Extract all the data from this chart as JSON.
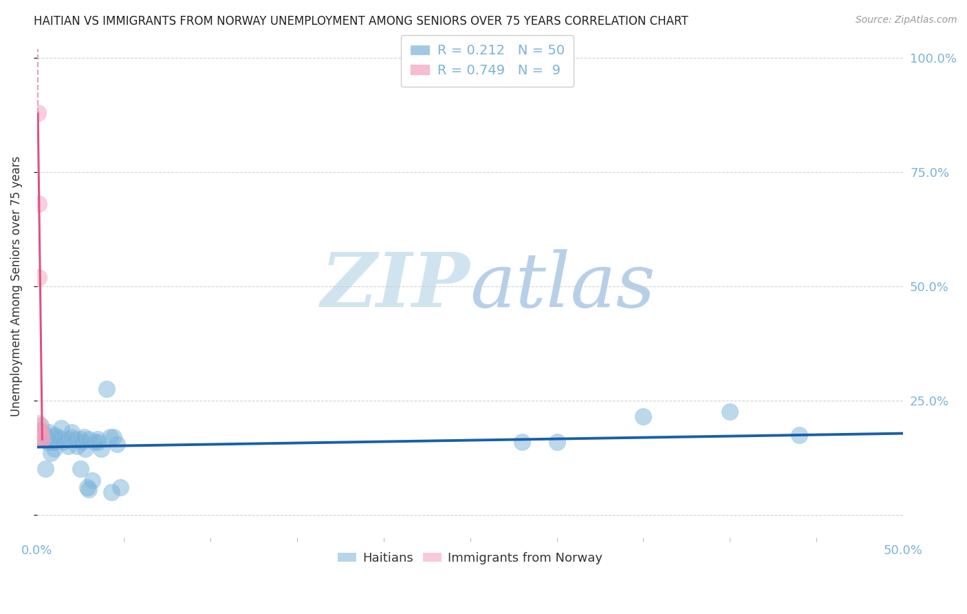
{
  "title": "HAITIAN VS IMMIGRANTS FROM NORWAY UNEMPLOYMENT AMONG SENIORS OVER 75 YEARS CORRELATION CHART",
  "source": "Source: ZipAtlas.com",
  "ylabel": "Unemployment Among Seniors over 75 years",
  "blue_color": "#7ab3d9",
  "pink_color": "#f4a0bb",
  "trendline_blue_color": "#1a5fa8",
  "trendline_pink_color": "#e05080",
  "trendline_pink_dashed_color": "#e8a0b8",
  "watermark_color": "#d0e4f0",
  "background_color": "#ffffff",
  "grid_color": "#cccccc",
  "xlim": [
    0.0,
    0.5
  ],
  "ylim": [
    -0.05,
    1.05
  ],
  "yticks": [
    0.0,
    0.25,
    0.5,
    0.75,
    1.0
  ],
  "xticks": [
    0.0,
    0.5
  ],
  "blue_points": [
    [
      0.001,
      0.185
    ],
    [
      0.002,
      0.195
    ],
    [
      0.002,
      0.165
    ],
    [
      0.003,
      0.18
    ],
    [
      0.004,
      0.165
    ],
    [
      0.005,
      0.1
    ],
    [
      0.005,
      0.175
    ],
    [
      0.006,
      0.16
    ],
    [
      0.007,
      0.18
    ],
    [
      0.007,
      0.16
    ],
    [
      0.008,
      0.135
    ],
    [
      0.009,
      0.17
    ],
    [
      0.009,
      0.16
    ],
    [
      0.01,
      0.175
    ],
    [
      0.01,
      0.16
    ],
    [
      0.01,
      0.145
    ],
    [
      0.012,
      0.17
    ],
    [
      0.013,
      0.165
    ],
    [
      0.014,
      0.19
    ],
    [
      0.015,
      0.16
    ],
    [
      0.017,
      0.165
    ],
    [
      0.018,
      0.15
    ],
    [
      0.02,
      0.18
    ],
    [
      0.02,
      0.17
    ],
    [
      0.022,
      0.165
    ],
    [
      0.023,
      0.15
    ],
    [
      0.025,
      0.1
    ],
    [
      0.025,
      0.165
    ],
    [
      0.026,
      0.16
    ],
    [
      0.027,
      0.17
    ],
    [
      0.028,
      0.145
    ],
    [
      0.029,
      0.06
    ],
    [
      0.03,
      0.165
    ],
    [
      0.03,
      0.055
    ],
    [
      0.032,
      0.075
    ],
    [
      0.033,
      0.16
    ],
    [
      0.035,
      0.165
    ],
    [
      0.035,
      0.16
    ],
    [
      0.037,
      0.145
    ],
    [
      0.04,
      0.275
    ],
    [
      0.042,
      0.17
    ],
    [
      0.043,
      0.05
    ],
    [
      0.044,
      0.17
    ],
    [
      0.046,
      0.155
    ],
    [
      0.048,
      0.06
    ],
    [
      0.28,
      0.16
    ],
    [
      0.3,
      0.16
    ],
    [
      0.35,
      0.215
    ],
    [
      0.4,
      0.225
    ],
    [
      0.44,
      0.175
    ]
  ],
  "pink_points": [
    [
      0.0005,
      0.88
    ],
    [
      0.001,
      0.68
    ],
    [
      0.001,
      0.52
    ],
    [
      0.001,
      0.2
    ],
    [
      0.001,
      0.185
    ],
    [
      0.002,
      0.185
    ],
    [
      0.002,
      0.175
    ],
    [
      0.002,
      0.165
    ],
    [
      0.003,
      0.165
    ]
  ],
  "blue_trendline": [
    [
      0.0,
      0.148
    ],
    [
      0.5,
      0.178
    ]
  ],
  "pink_trendline_solid": [
    [
      0.0005,
      0.88
    ],
    [
      0.003,
      0.165
    ]
  ],
  "pink_trendline_dashed": [
    [
      0.0005,
      0.88
    ],
    [
      0.0005,
      1.02
    ]
  ],
  "legend_r_blue": "0.212",
  "legend_n_blue": "50",
  "legend_r_pink": "0.749",
  "legend_n_pink": "9"
}
